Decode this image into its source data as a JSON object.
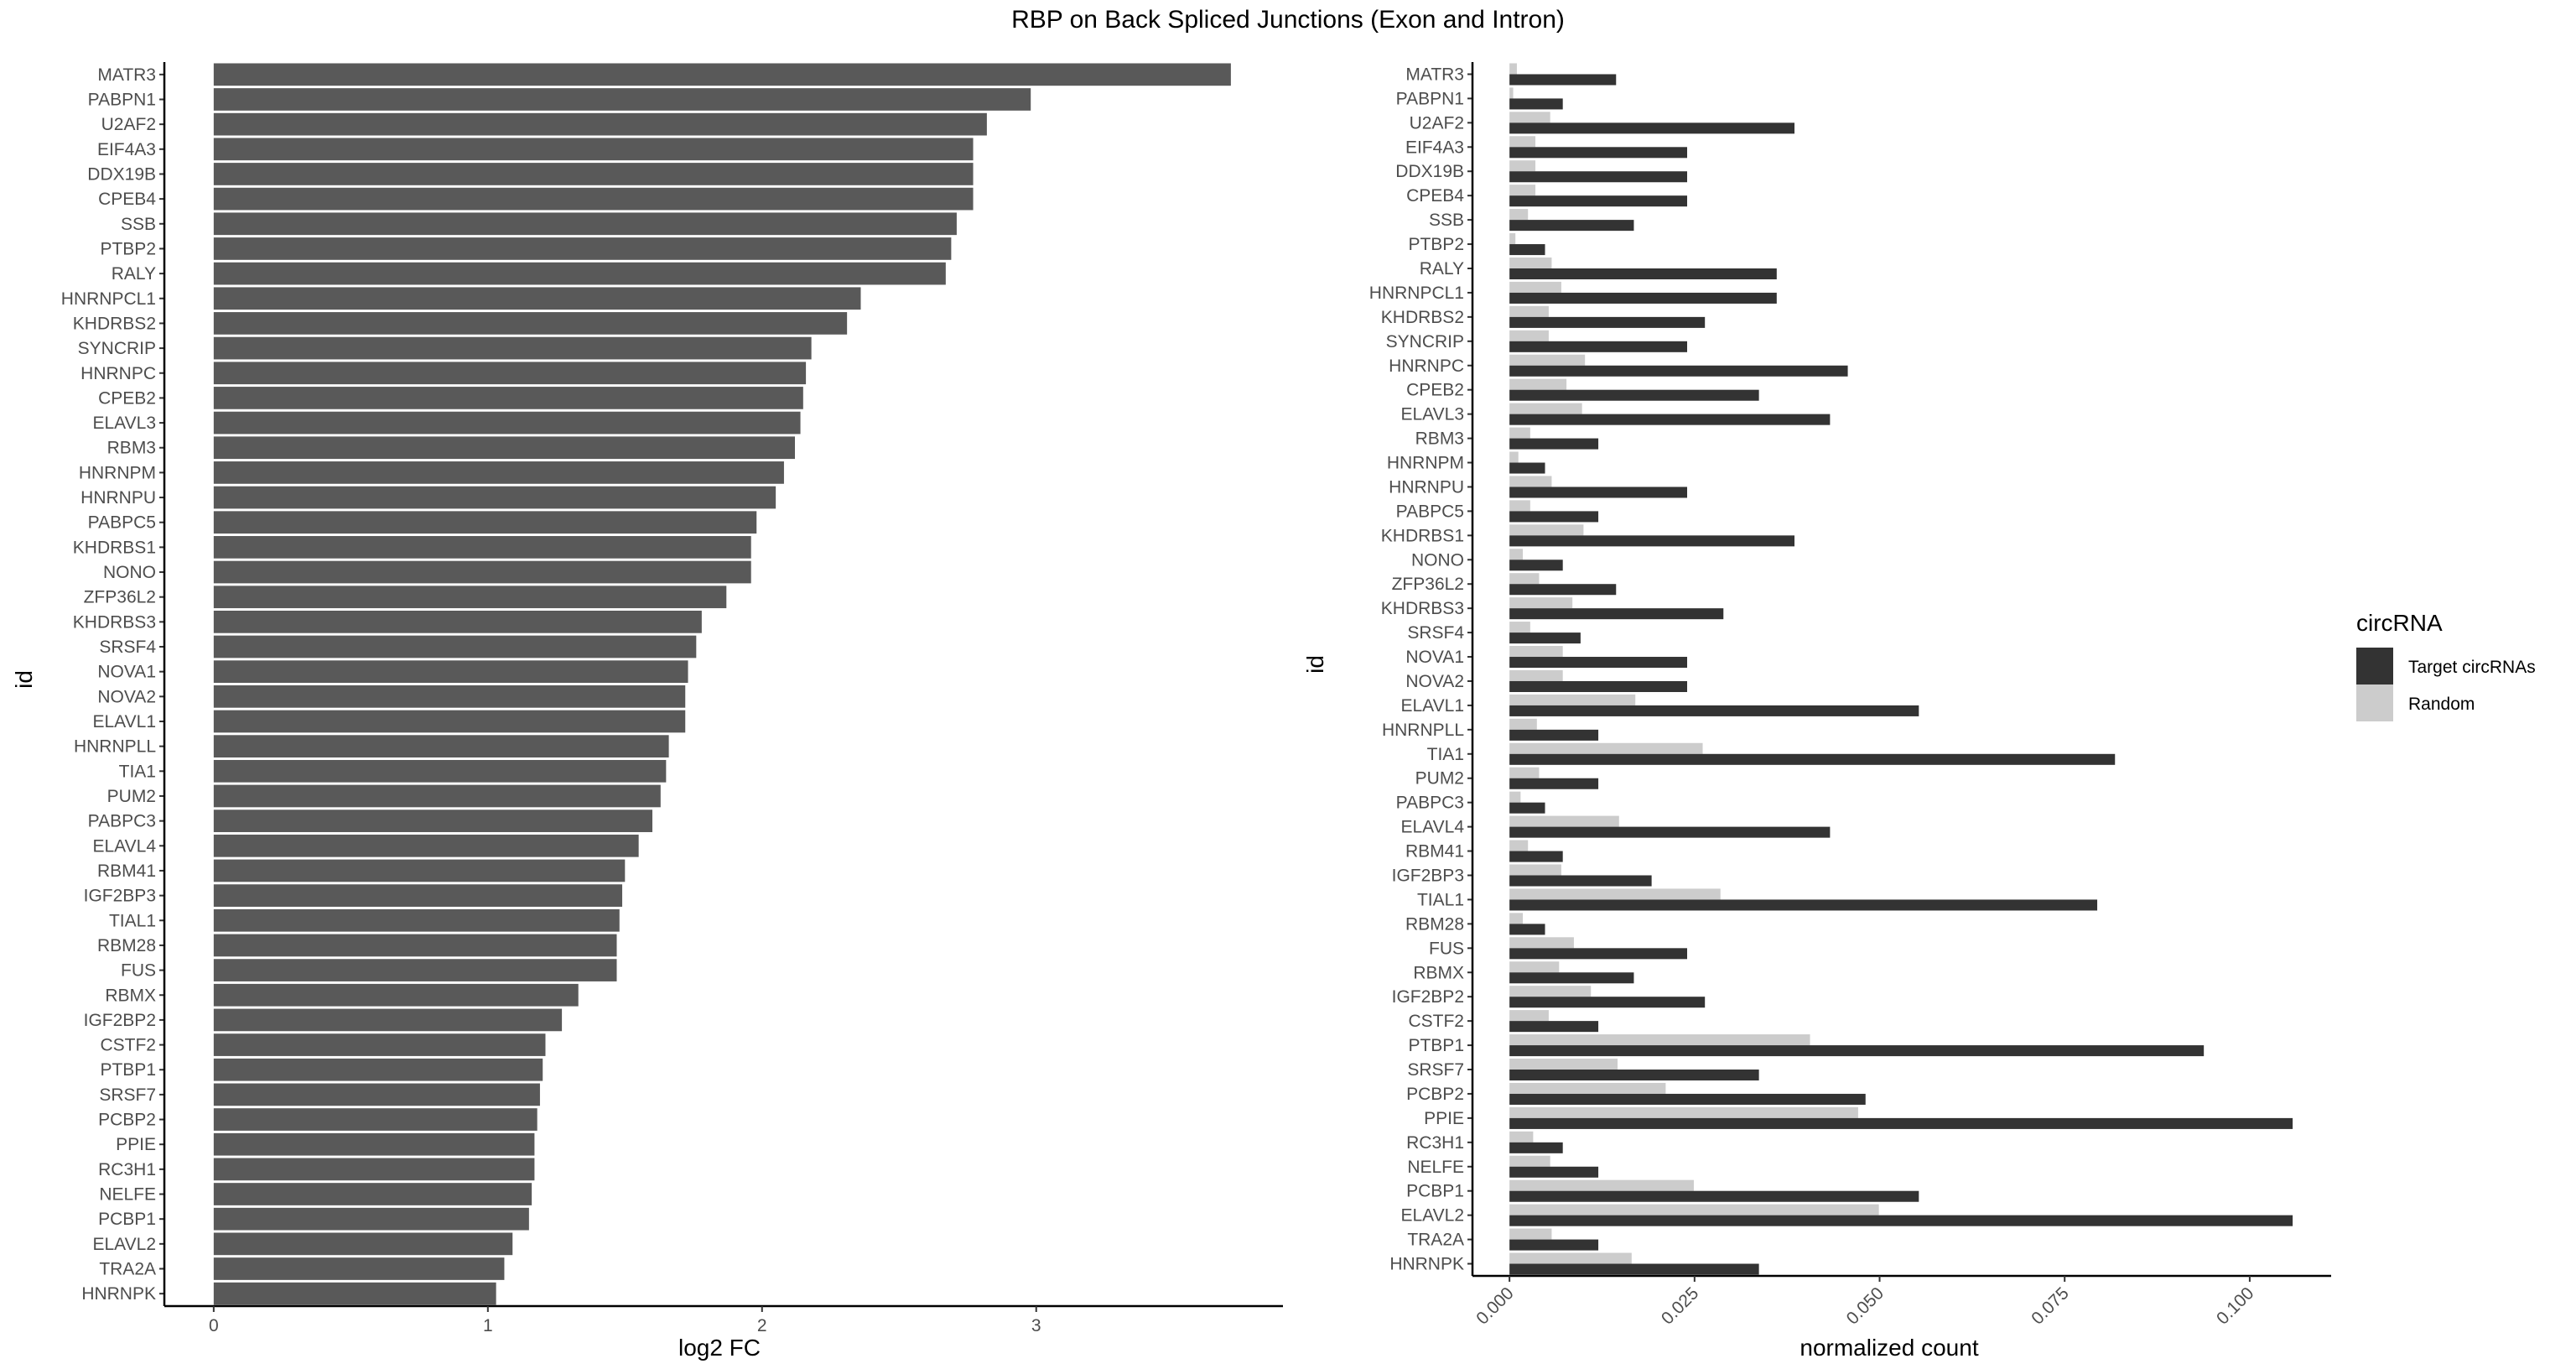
{
  "title": "RBP on Back Spliced Junctions (Exon and Intron)",
  "chart_data": [
    {
      "type": "bar",
      "orientation": "horizontal",
      "xlabel": "log2 FC",
      "ylabel": "id",
      "xlim": [
        -0.18,
        3.9
      ],
      "x_ticks": [
        0,
        1,
        2,
        3
      ],
      "x_tick_labels": [
        "0",
        "1",
        "2",
        "3"
      ],
      "grid": false,
      "bar_color": "#595959",
      "categories": [
        "MATR3",
        "PABPN1",
        "U2AF2",
        "EIF4A3",
        "DDX19B",
        "CPEB4",
        "SSB",
        "PTBP2",
        "RALY",
        "HNRNPCL1",
        "KHDRBS2",
        "SYNCRIP",
        "HNRNPC",
        "CPEB2",
        "ELAVL3",
        "RBM3",
        "HNRNPM",
        "HNRNPU",
        "PABPC5",
        "KHDRBS1",
        "NONO",
        "ZFP36L2",
        "KHDRBS3",
        "SRSF4",
        "NOVA1",
        "NOVA2",
        "ELAVL1",
        "HNRNPLL",
        "TIA1",
        "PUM2",
        "PABPC3",
        "ELAVL4",
        "RBM41",
        "IGF2BP3",
        "TIAL1",
        "RBM28",
        "FUS",
        "RBMX",
        "IGF2BP2",
        "CSTF2",
        "PTBP1",
        "SRSF7",
        "PCBP2",
        "PPIE",
        "RC3H1",
        "NELFE",
        "PCBP1",
        "ELAVL2",
        "TRA2A",
        "HNRNPK"
      ],
      "values": [
        3.71,
        2.98,
        2.82,
        2.77,
        2.77,
        2.77,
        2.71,
        2.69,
        2.67,
        2.36,
        2.31,
        2.18,
        2.16,
        2.15,
        2.14,
        2.12,
        2.08,
        2.05,
        1.98,
        1.96,
        1.96,
        1.87,
        1.78,
        1.76,
        1.73,
        1.72,
        1.72,
        1.66,
        1.65,
        1.63,
        1.6,
        1.55,
        1.5,
        1.49,
        1.48,
        1.47,
        1.47,
        1.33,
        1.27,
        1.21,
        1.2,
        1.19,
        1.18,
        1.17,
        1.17,
        1.16,
        1.15,
        1.09,
        1.06,
        1.03
      ]
    },
    {
      "type": "bar",
      "orientation": "horizontal",
      "grouped": true,
      "xlabel": "normalized count",
      "ylabel": "id",
      "xlim": [
        -0.005,
        0.111
      ],
      "x_ticks": [
        0,
        0.025,
        0.05,
        0.075,
        0.1
      ],
      "x_tick_labels": [
        "0.000",
        "0.025",
        "0.050",
        "0.075",
        "0.100"
      ],
      "x_tick_label_rotation": -45,
      "grid": false,
      "legend": {
        "title": "circRNA",
        "position": "right"
      },
      "categories": [
        "MATR3",
        "PABPN1",
        "U2AF2",
        "EIF4A3",
        "DDX19B",
        "CPEB4",
        "SSB",
        "PTBP2",
        "RALY",
        "HNRNPCL1",
        "KHDRBS2",
        "SYNCRIP",
        "HNRNPC",
        "CPEB2",
        "ELAVL3",
        "RBM3",
        "HNRNPM",
        "HNRNPU",
        "PABPC5",
        "KHDRBS1",
        "NONO",
        "ZFP36L2",
        "KHDRBS3",
        "SRSF4",
        "NOVA1",
        "NOVA2",
        "ELAVL1",
        "HNRNPLL",
        "TIA1",
        "PUM2",
        "PABPC3",
        "ELAVL4",
        "RBM41",
        "IGF2BP3",
        "TIAL1",
        "RBM28",
        "FUS",
        "RBMX",
        "IGF2BP2",
        "CSTF2",
        "PTBP1",
        "SRSF7",
        "PCBP2",
        "PPIE",
        "RC3H1",
        "NELFE",
        "PCBP1",
        "ELAVL2",
        "TRA2A",
        "HNRNPK"
      ],
      "series": [
        {
          "name": "Target circRNAs",
          "color": "#333333",
          "values": [
            0.0144,
            0.0072,
            0.0385,
            0.024,
            0.024,
            0.024,
            0.0168,
            0.0048,
            0.0361,
            0.0361,
            0.0264,
            0.024,
            0.0457,
            0.0337,
            0.0433,
            0.012,
            0.0048,
            0.024,
            0.012,
            0.0385,
            0.0072,
            0.0144,
            0.0289,
            0.0096,
            0.024,
            0.024,
            0.0553,
            0.012,
            0.0818,
            0.012,
            0.0048,
            0.0433,
            0.0072,
            0.0192,
            0.0794,
            0.0048,
            0.024,
            0.0168,
            0.0264,
            0.012,
            0.0938,
            0.0337,
            0.0481,
            0.1058,
            0.0072,
            0.012,
            0.0553,
            0.1058,
            0.012,
            0.0337
          ]
        },
        {
          "name": "Random",
          "color": "#cccccc",
          "values": [
            0.001,
            0.0005,
            0.0055,
            0.0035,
            0.0035,
            0.0035,
            0.0025,
            0.0008,
            0.0057,
            0.007,
            0.0053,
            0.0053,
            0.0102,
            0.0077,
            0.0098,
            0.0028,
            0.0012,
            0.0057,
            0.0028,
            0.01,
            0.0018,
            0.004,
            0.0085,
            0.0028,
            0.0072,
            0.0072,
            0.017,
            0.0037,
            0.0261,
            0.004,
            0.0015,
            0.0148,
            0.0025,
            0.007,
            0.0285,
            0.0018,
            0.0087,
            0.0067,
            0.011,
            0.0053,
            0.0406,
            0.0146,
            0.0211,
            0.0471,
            0.0032,
            0.0055,
            0.0249,
            0.0499,
            0.0057,
            0.0165
          ]
        }
      ]
    }
  ]
}
